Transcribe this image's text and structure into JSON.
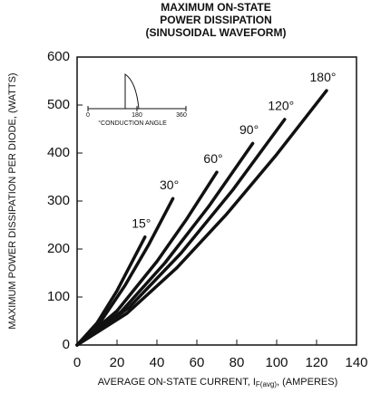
{
  "chart_data": {
    "type": "line",
    "title": [
      "MAXIMUM ON-STATE",
      "POWER DISSIPATION",
      "(SINUSOIDAL WAVEFORM)"
    ],
    "y_label": "MAXIMUM POWER DISSIPATION PER DIODE, (WATTS)",
    "x_label": [
      "AVERAGE ON-STATE CURRENT, I",
      "F(avg)",
      ", (AMPERES)"
    ],
    "xlim": [
      0,
      140
    ],
    "xticks": [
      0,
      20,
      40,
      60,
      80,
      100,
      120,
      140
    ],
    "ylim": [
      0,
      600
    ],
    "yticks": [
      0,
      100,
      200,
      300,
      400,
      500,
      600
    ],
    "grid": false,
    "series": [
      {
        "name": "15°",
        "color": "#111111",
        "x": [
          0,
          10,
          20,
          34
        ],
        "values": [
          0,
          46,
          113,
          225
        ]
      },
      {
        "name": "30°",
        "color": "#111111",
        "x": [
          0,
          12,
          24,
          36,
          48
        ],
        "values": [
          0,
          50,
          124,
          210,
          305
        ]
      },
      {
        "name": "60°",
        "color": "#111111",
        "x": [
          0,
          20,
          40,
          55,
          70
        ],
        "values": [
          0,
          71,
          174,
          263,
          360
        ]
      },
      {
        "name": "90°",
        "color": "#111111",
        "x": [
          0,
          22,
          44,
          66,
          88
        ],
        "values": [
          0,
          69,
          171,
          289,
          420
        ]
      },
      {
        "name": "120°",
        "color": "#111111",
        "x": [
          0,
          26,
          52,
          78,
          104
        ],
        "values": [
          0,
          78,
          191,
          323,
          470
        ]
      },
      {
        "name": "180°",
        "color": "#111111",
        "x": [
          0,
          25,
          50,
          75,
          100,
          125
        ],
        "values": [
          0,
          66,
          161,
          273,
          397,
          530
        ]
      }
    ],
    "inset": {
      "ticks": [
        "0",
        "180",
        "360"
      ],
      "caption": "°CONDUCTION ANGLE"
    }
  }
}
